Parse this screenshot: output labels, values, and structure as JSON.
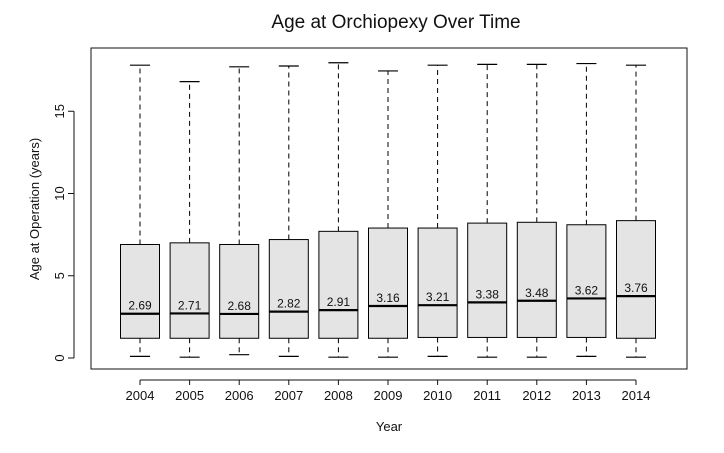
{
  "chart_data": {
    "type": "boxplot",
    "title": "Age at Orchiopexy Over Time",
    "xlabel": "Year",
    "ylabel": "Age at Operation (years)",
    "ylim": [
      -0.6,
      18.4
    ],
    "yticks": [
      "0",
      "5",
      "10",
      "15"
    ],
    "ytick_values": [
      0,
      5,
      10,
      15
    ],
    "categories": [
      "2004",
      "2005",
      "2006",
      "2007",
      "2008",
      "2009",
      "2010",
      "2011",
      "2012",
      "2013",
      "2014"
    ],
    "boxes": [
      {
        "min": 0.1,
        "q1": 1.2,
        "median": 2.69,
        "q3": 6.9,
        "max": 17.8,
        "median_label": "2.69"
      },
      {
        "min": 0.05,
        "q1": 1.2,
        "median": 2.71,
        "q3": 7.0,
        "max": 16.8,
        "median_label": "2.71"
      },
      {
        "min": 0.2,
        "q1": 1.2,
        "median": 2.68,
        "q3": 6.9,
        "max": 17.7,
        "median_label": "2.68"
      },
      {
        "min": 0.1,
        "q1": 1.2,
        "median": 2.82,
        "q3": 7.2,
        "max": 17.75,
        "median_label": "2.82"
      },
      {
        "min": 0.05,
        "q1": 1.2,
        "median": 2.91,
        "q3": 7.7,
        "max": 17.95,
        "median_label": "2.91"
      },
      {
        "min": 0.05,
        "q1": 1.2,
        "median": 3.16,
        "q3": 7.9,
        "max": 17.45,
        "median_label": "3.16"
      },
      {
        "min": 0.1,
        "q1": 1.25,
        "median": 3.21,
        "q3": 7.9,
        "max": 17.8,
        "median_label": "3.21"
      },
      {
        "min": 0.05,
        "q1": 1.25,
        "median": 3.38,
        "q3": 8.2,
        "max": 17.85,
        "median_label": "3.38"
      },
      {
        "min": 0.05,
        "q1": 1.25,
        "median": 3.48,
        "q3": 8.25,
        "max": 17.85,
        "median_label": "3.48"
      },
      {
        "min": 0.1,
        "q1": 1.25,
        "median": 3.62,
        "q3": 8.1,
        "max": 17.9,
        "median_label": "3.62"
      },
      {
        "min": 0.05,
        "q1": 1.2,
        "median": 3.76,
        "q3": 8.35,
        "max": 17.8,
        "median_label": "3.76"
      }
    ],
    "box_fill": "#e4e4e4",
    "line_color": "#000000",
    "grid": false
  }
}
